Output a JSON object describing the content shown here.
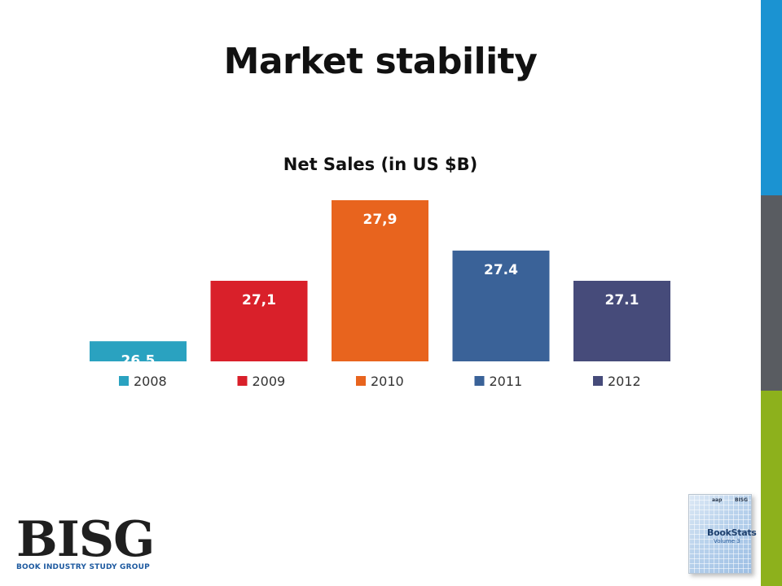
{
  "slide": {
    "title": "Market stability"
  },
  "colors": {
    "stripe_top": "#1b93d2",
    "stripe_mid": "#595c61",
    "stripe_bottom": "#8db11c"
  },
  "chart_data": {
    "type": "bar",
    "title": "Net Sales (in US $B)",
    "categories": [
      "2008",
      "2009",
      "2010",
      "2011",
      "2012"
    ],
    "values": [
      26.5,
      27.1,
      27.9,
      27.4,
      27.1
    ],
    "data_labels": [
      "26,5",
      "27,1",
      "27,9",
      "27.4",
      "27.1"
    ],
    "colors": [
      "#2aa2c0",
      "#d9202a",
      "#e8641e",
      "#3a6298",
      "#464b7a"
    ],
    "ylim": [
      0,
      28
    ],
    "grid": false,
    "legend": "bottom",
    "xlabel": "",
    "ylabel": ""
  },
  "logo": {
    "name": "BISG",
    "subtitle": "BOOK INDUSTRY STUDY GROUP"
  },
  "book": {
    "publisher_left": "aap",
    "publisher_right": "BISG",
    "title": "BookStats",
    "volume": "Volume 3"
  }
}
